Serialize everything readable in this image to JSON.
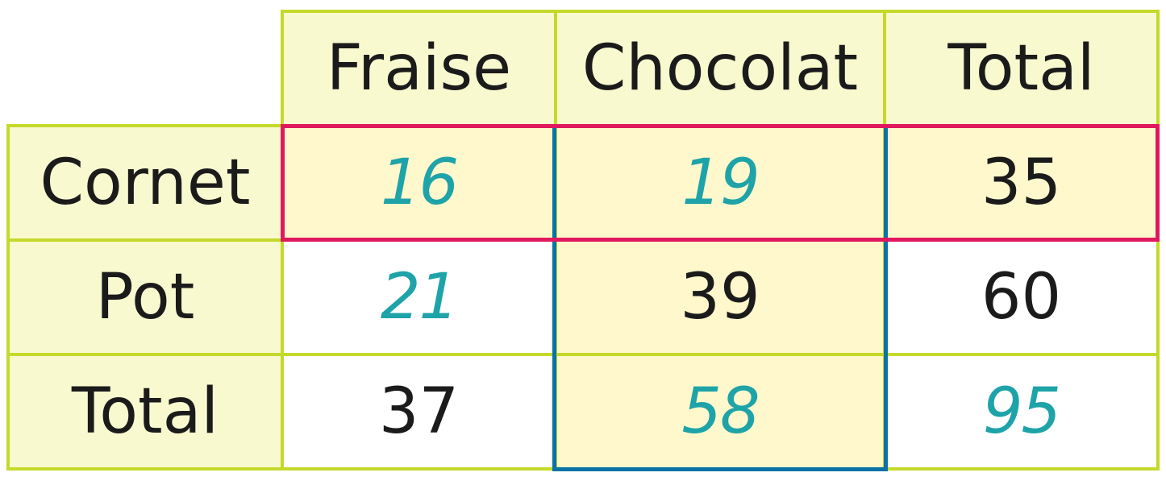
{
  "colors": {
    "grid": "#c4d92a",
    "header_fill": "#f8f9cf",
    "highlight_fill": "#fff8cc",
    "row_frame": "#e0195f",
    "col_frame": "#0a72a6",
    "handwritten_text": "#1ea3a8",
    "printed_text": "#1b1b1b"
  },
  "table": {
    "column_headers": [
      "Fraise",
      "Chocolat",
      "Total"
    ],
    "row_headers": [
      "Cornet",
      "Pot",
      "Total"
    ],
    "rows": [
      [
        "16",
        "19",
        "35"
      ],
      [
        "21",
        "39",
        "60"
      ],
      [
        "37",
        "58",
        "95"
      ]
    ]
  }
}
